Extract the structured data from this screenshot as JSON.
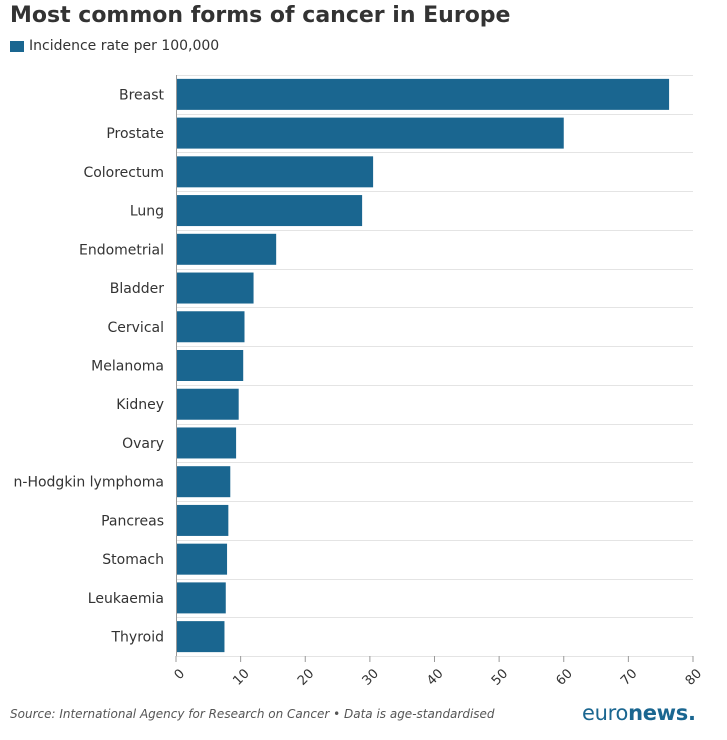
{
  "title": "Most common forms of cancer in Europe",
  "source": "Source: International Agency for Research on Cancer • Data is age-standardised",
  "logo": {
    "part1": "euro",
    "part2": "news",
    "dot": "."
  },
  "colors": {
    "bar": "#1a6690",
    "grid": "#e4e4e4",
    "axis": "#999999",
    "text": "#333333"
  },
  "chart_data": {
    "type": "bar",
    "orientation": "horizontal",
    "title": "Most common forms of cancer in Europe",
    "categories": [
      "Breast",
      "Prostate",
      "Colorectum",
      "Lung",
      "Endometrial",
      "Bladder",
      "Cervical",
      "Melanoma",
      "Kidney",
      "Ovary",
      "n-Hodgkin lymphoma",
      "Pancreas",
      "Stomach",
      "Leukaemia",
      "Thyroid"
    ],
    "series": [
      {
        "name": "Incidence rate per 100,000",
        "color": "#1a6690",
        "values": [
          76.3,
          60.0,
          30.5,
          28.8,
          15.5,
          12.0,
          10.6,
          10.4,
          9.7,
          9.3,
          8.4,
          8.1,
          7.9,
          7.7,
          7.5
        ]
      }
    ],
    "xticks": [
      "0",
      "10",
      "20",
      "30",
      "40",
      "50",
      "60",
      "70",
      "80"
    ],
    "xlim": [
      0,
      80
    ],
    "grid": true,
    "legend_position": "top-left"
  }
}
